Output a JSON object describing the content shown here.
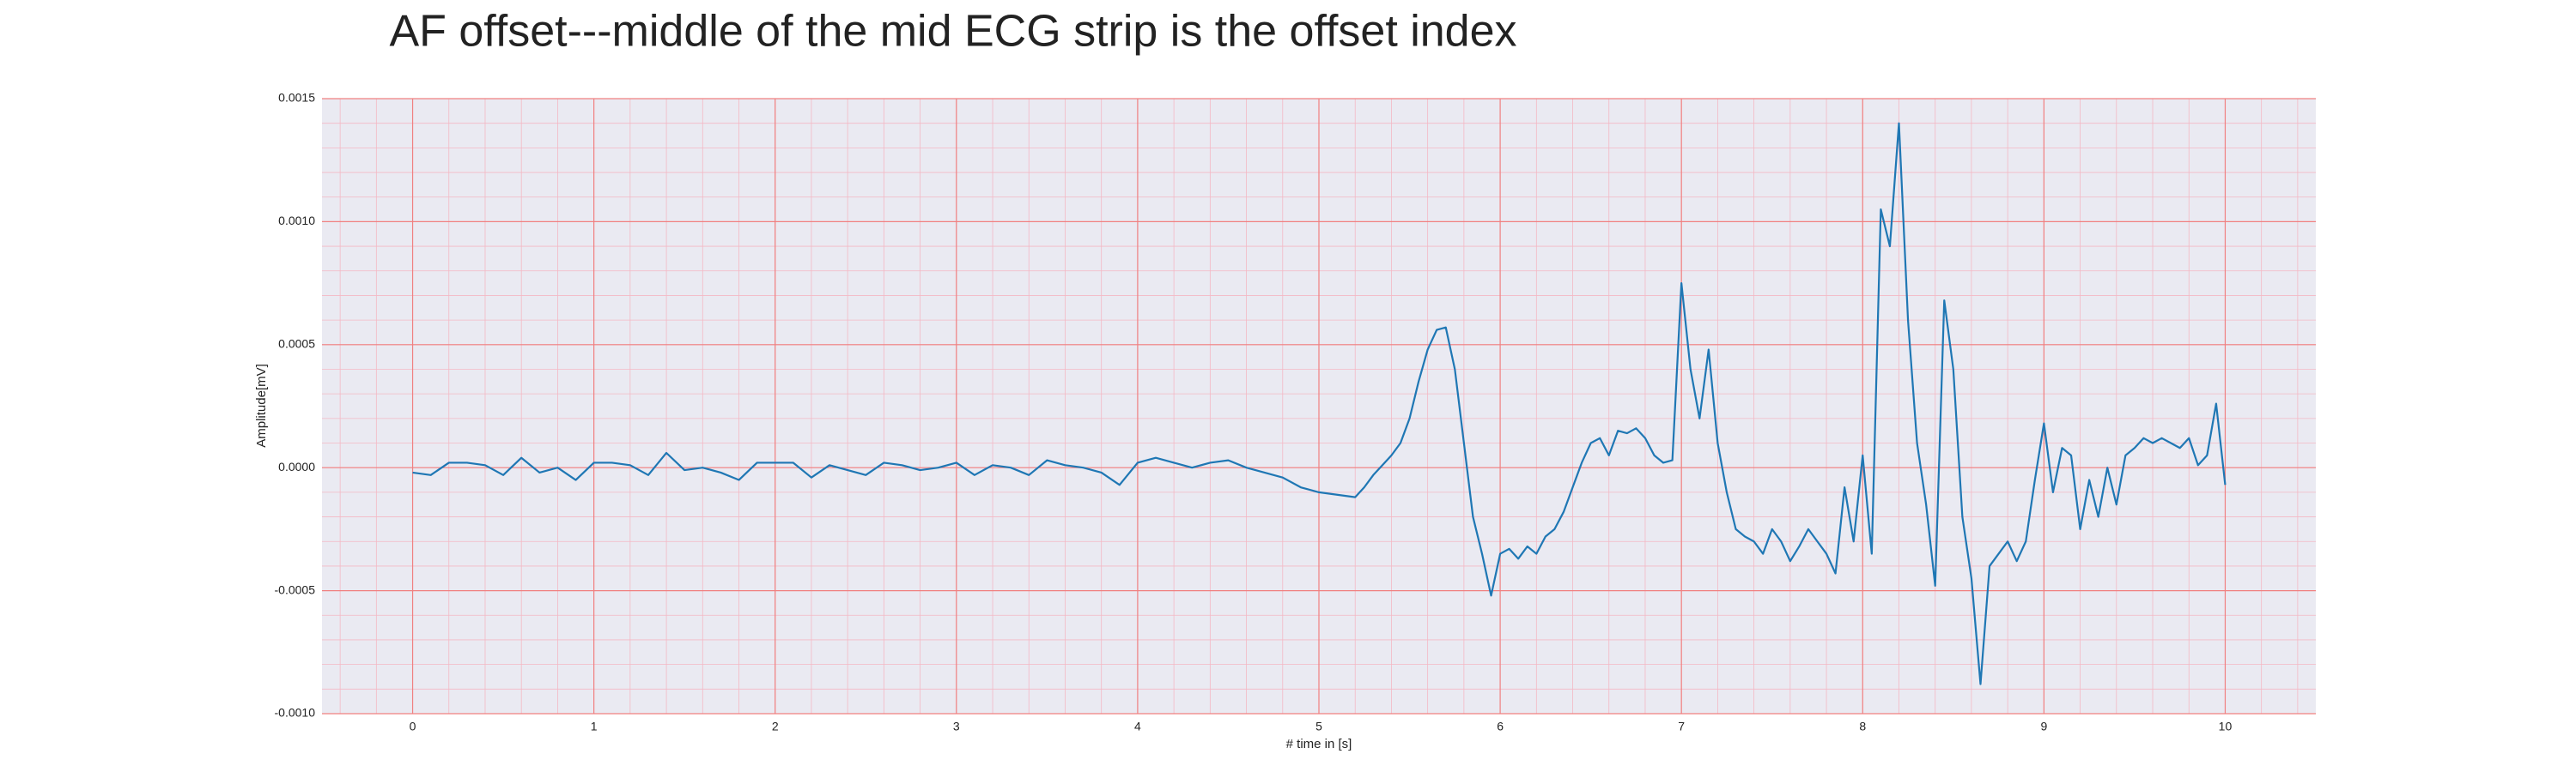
{
  "chart_data": {
    "type": "line",
    "title": "AF offset---middle of the mid ECG strip is the offset index",
    "xlabel": "# time in [s]",
    "ylabel": "Amplitude[mV]",
    "color": "#1f77b4",
    "grid": true,
    "minor_grid": true,
    "xlim": [
      -0.5,
      10.5
    ],
    "ylim": [
      -0.001,
      0.0015
    ],
    "xticks": [
      0,
      1,
      2,
      3,
      4,
      5,
      6,
      7,
      8,
      9,
      10
    ],
    "yticks": [
      {
        "value": -0.001,
        "label": "-0.0010"
      },
      {
        "value": -0.0005,
        "label": "-0.0005"
      },
      {
        "value": 0,
        "label": "0.0000"
      },
      {
        "value": 0.0005,
        "label": "0.0005"
      },
      {
        "value": 0.001,
        "label": "0.0010"
      },
      {
        "value": 0.0015,
        "label": "0.0015"
      }
    ],
    "x": [
      0,
      0.1,
      0.2,
      0.3,
      0.4,
      0.5,
      0.6,
      0.7,
      0.8,
      0.9,
      1.0,
      1.1,
      1.2,
      1.3,
      1.4,
      1.5,
      1.6,
      1.7,
      1.8,
      1.9,
      2.0,
      2.1,
      2.2,
      2.3,
      2.4,
      2.5,
      2.6,
      2.7,
      2.8,
      2.9,
      3.0,
      3.1,
      3.2,
      3.3,
      3.4,
      3.5,
      3.6,
      3.7,
      3.8,
      3.9,
      4.0,
      4.1,
      4.2,
      4.3,
      4.4,
      4.5,
      4.6,
      4.7,
      4.8,
      4.9,
      5.0,
      5.1,
      5.2,
      5.25,
      5.3,
      5.35,
      5.4,
      5.45,
      5.5,
      5.55,
      5.6,
      5.65,
      5.7,
      5.75,
      5.8,
      5.85,
      5.9,
      5.95,
      6.0,
      6.05,
      6.1,
      6.15,
      6.2,
      6.25,
      6.3,
      6.35,
      6.4,
      6.45,
      6.5,
      6.55,
      6.6,
      6.65,
      6.7,
      6.75,
      6.8,
      6.85,
      6.9,
      6.95,
      7.0,
      7.05,
      7.1,
      7.15,
      7.2,
      7.25,
      7.3,
      7.35,
      7.4,
      7.45,
      7.5,
      7.55,
      7.6,
      7.65,
      7.7,
      7.75,
      7.8,
      7.85,
      7.9,
      7.95,
      8.0,
      8.05,
      8.1,
      8.15,
      8.2,
      8.25,
      8.3,
      8.35,
      8.4,
      8.45,
      8.5,
      8.55,
      8.6,
      8.65,
      8.7,
      8.75,
      8.8,
      8.85,
      8.9,
      8.95,
      9.0,
      9.05,
      9.1,
      9.15,
      9.2,
      9.25,
      9.3,
      9.35,
      9.4,
      9.45,
      9.5,
      9.55,
      9.6,
      9.65,
      9.7,
      9.75,
      9.8,
      9.85,
      9.9,
      9.95,
      10.0
    ],
    "values": [
      -2e-05,
      -3e-05,
      2e-05,
      2e-05,
      1e-05,
      -3e-05,
      4e-05,
      -2e-05,
      0,
      -5e-05,
      2e-05,
      2e-05,
      1e-05,
      -3e-05,
      6e-05,
      -1e-05,
      0,
      -2e-05,
      -5e-05,
      2e-05,
      2e-05,
      2e-05,
      -4e-05,
      1e-05,
      -1e-05,
      -3e-05,
      2e-05,
      1e-05,
      -1e-05,
      0,
      2e-05,
      -3e-05,
      1e-05,
      0,
      -3e-05,
      3e-05,
      1e-05,
      0,
      -2e-05,
      -7e-05,
      2e-05,
      4e-05,
      2e-05,
      0,
      2e-05,
      3e-05,
      0,
      -2e-05,
      -4e-05,
      -8e-05,
      -0.0001,
      -0.00011,
      -0.00012,
      -8e-05,
      -3e-05,
      1e-05,
      5e-05,
      0.0001,
      0.0002,
      0.00035,
      0.00048,
      0.00056,
      0.00057,
      0.0004,
      0.0001,
      -0.0002,
      -0.00035,
      -0.00052,
      -0.00035,
      -0.00033,
      -0.00037,
      -0.00032,
      -0.00035,
      -0.00028,
      -0.00025,
      -0.00018,
      -8e-05,
      2e-05,
      0.0001,
      0.00012,
      5e-05,
      0.00015,
      0.00014,
      0.00016,
      0.00012,
      5e-05,
      2e-05,
      3e-05,
      0.00075,
      0.0004,
      0.0002,
      0.00048,
      0.0001,
      -0.0001,
      -0.00025,
      -0.00028,
      -0.0003,
      -0.00035,
      -0.00025,
      -0.0003,
      -0.00038,
      -0.00032,
      -0.00025,
      -0.0003,
      -0.00035,
      -0.00043,
      -8e-05,
      -0.0003,
      5e-05,
      -0.00035,
      0.00105,
      0.0009,
      0.0014,
      0.0006,
      0.0001,
      -0.00015,
      -0.00048,
      0.00068,
      0.0004,
      -0.0002,
      -0.00045,
      -0.00088,
      -0.0004,
      -0.00035,
      -0.0003,
      -0.00038,
      -0.0003,
      -5e-05,
      0.00018,
      -0.0001,
      8e-05,
      5e-05,
      -0.00025,
      -5e-05,
      -0.0002,
      0,
      -0.00015,
      5e-05,
      8e-05,
      0.00012,
      0.0001,
      0.00012,
      0.0001,
      8e-05,
      0.00012,
      1e-05,
      5e-05,
      0.00026,
      -7e-05
    ]
  }
}
